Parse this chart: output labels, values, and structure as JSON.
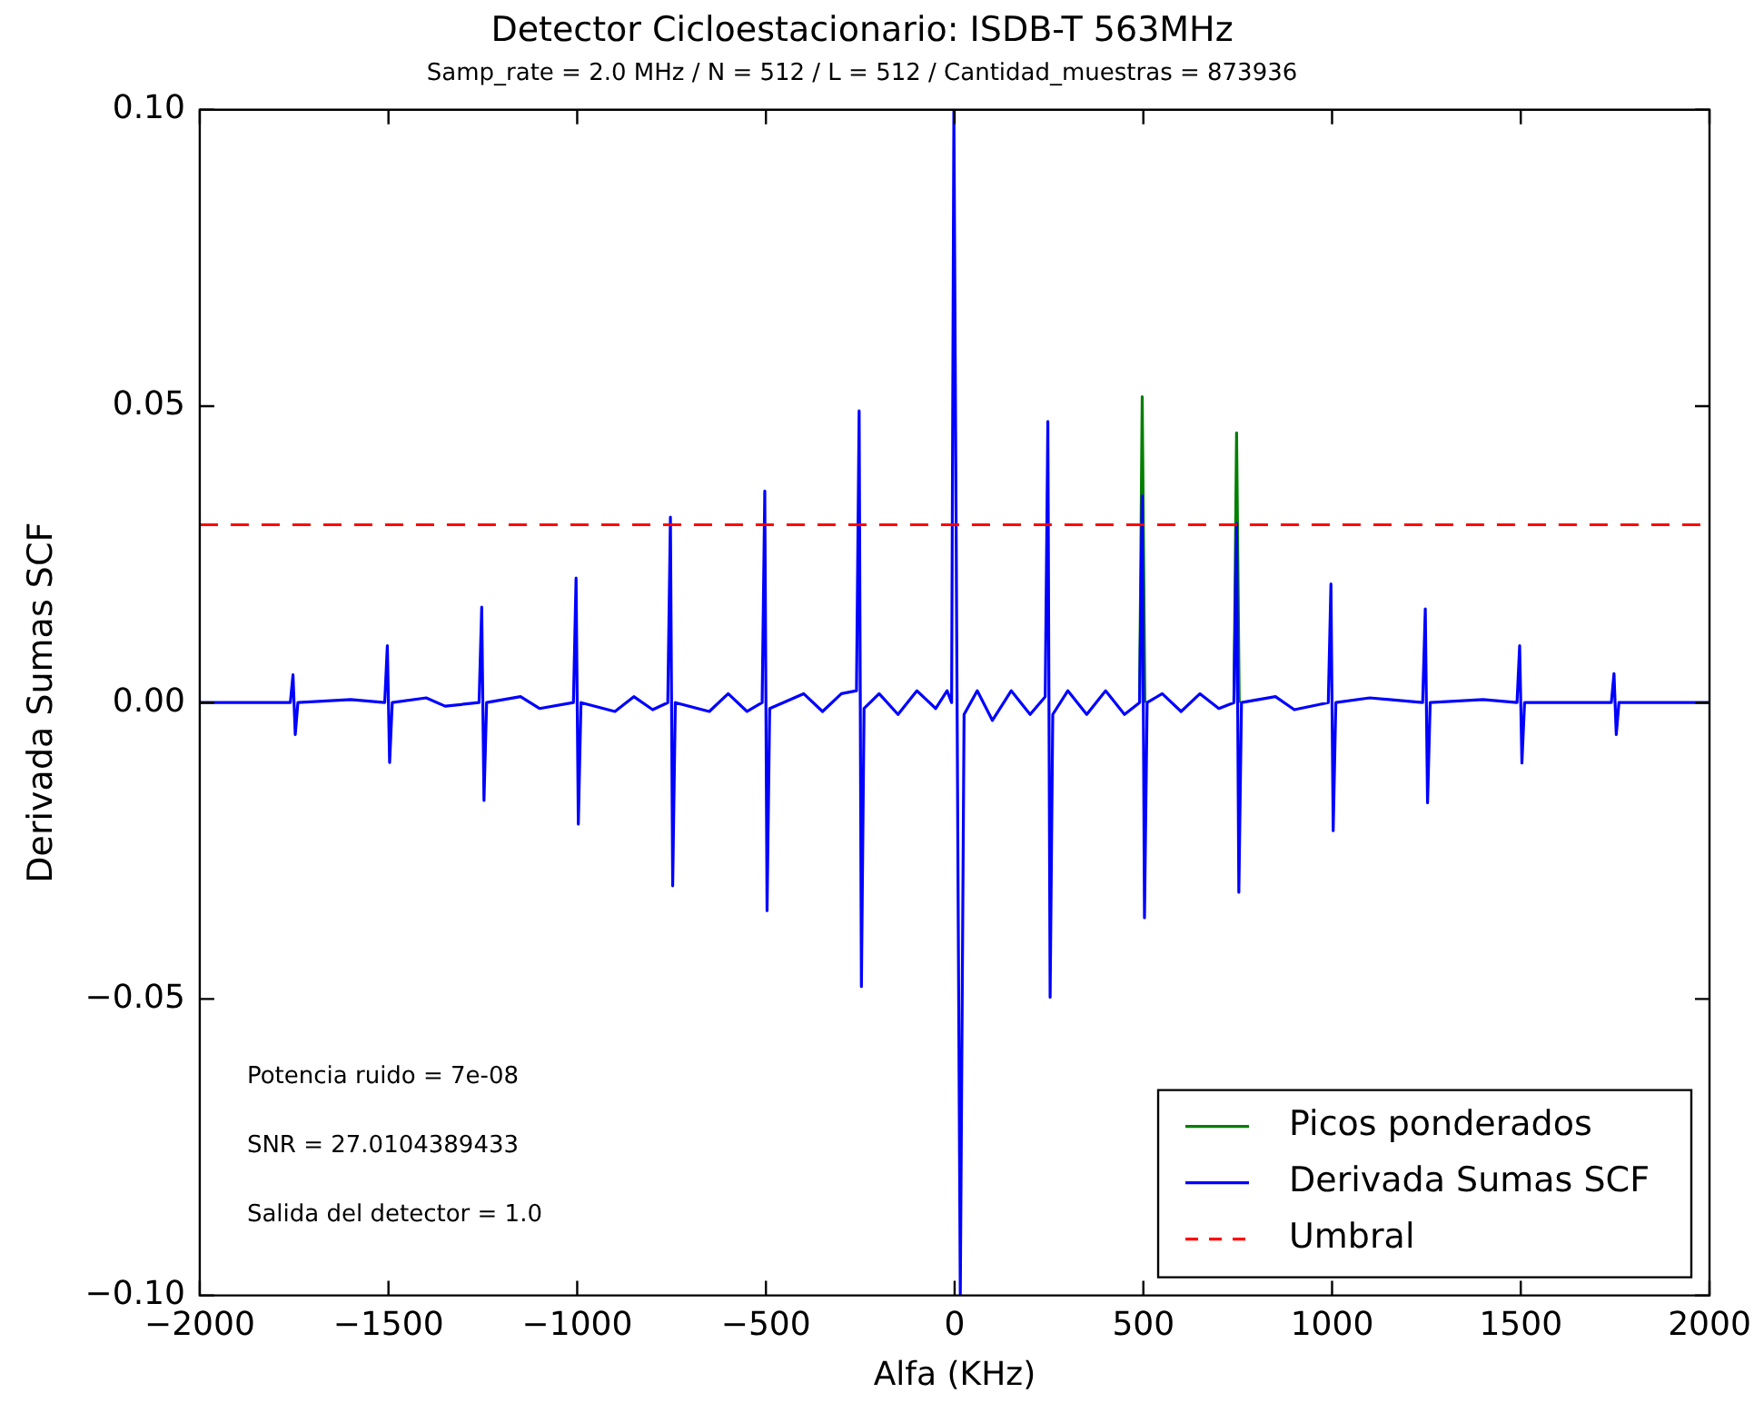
{
  "chart_data": {
    "type": "line",
    "title": "Detector Cicloestacionario: ISDB-T 563MHz",
    "subtitle": "Samp_rate = 2.0 MHz / N = 512 / L = 512 / Cantidad_muestras = 873936",
    "xlabel": "Alfa (KHz)",
    "ylabel": "Derivada Sumas SCF",
    "annotations": [
      "Potencia ruido = 7e-08",
      "SNR = 27.0104389433",
      "Salida del detector = 1.0"
    ],
    "xlim": [
      -2000,
      2000
    ],
    "xticks": [
      {
        "value": -2000,
        "label": "−2000"
      },
      {
        "value": -1500,
        "label": "−1500"
      },
      {
        "value": -1000,
        "label": "−1000"
      },
      {
        "value": -500,
        "label": "−500"
      },
      0,
      500,
      1000,
      1500,
      2000
    ],
    "ylim": [
      -0.1,
      0.1
    ],
    "yticks": [
      {
        "value": -0.1,
        "label": "−0.10"
      },
      {
        "value": -0.05,
        "label": "−0.05"
      },
      {
        "value": 0,
        "label": "0.00"
      },
      {
        "value": 0.05,
        "label": "0.05"
      },
      {
        "value": 0.1,
        "label": "0.10"
      }
    ],
    "grid": false,
    "legend": "bottom right",
    "marker": "none",
    "series": [
      {
        "name": "Picos ponderados",
        "color": "#008000",
        "line_style": "solid",
        "x": [
          490,
          497,
          504,
          620,
          740,
          747,
          754
        ],
        "values": [
          0,
          0.0516,
          0,
          null,
          0,
          0.0455,
          0
        ]
      },
      {
        "name": "Derivada Sumas SCF",
        "color": "#0000ff",
        "line_style": "solid",
        "x": [
          -2000,
          -1760,
          -1753,
          -1747,
          -1740,
          -1600,
          -1510,
          -1503,
          -1497,
          -1490,
          -1400,
          -1350,
          -1260,
          -1253,
          -1247,
          -1240,
          -1150,
          -1100,
          -1010,
          -1003,
          -997,
          -990,
          -900,
          -850,
          -800,
          -760,
          -753,
          -747,
          -740,
          -650,
          -600,
          -550,
          -510,
          -503,
          -497,
          -490,
          -400,
          -350,
          -300,
          -260,
          -253,
          -247,
          -240,
          -200,
          -150,
          -100,
          -50,
          -20,
          -8,
          -2,
          15,
          25,
          60,
          100,
          150,
          200,
          240,
          247,
          253,
          260,
          300,
          350,
          400,
          450,
          490,
          497,
          503,
          510,
          550,
          600,
          650,
          700,
          740,
          747,
          753,
          760,
          850,
          900,
          990,
          997,
          1003,
          1010,
          1100,
          1240,
          1247,
          1253,
          1260,
          1400,
          1490,
          1497,
          1503,
          1510,
          1740,
          1747,
          1753,
          1760,
          2000
        ],
        "values": [
          0,
          0,
          0.0047,
          -0.0054,
          0,
          0.0005,
          0,
          0.0096,
          -0.0101,
          0,
          0.0008,
          -0.0006,
          0,
          0.0161,
          -0.0165,
          0,
          0.001,
          -0.001,
          0,
          0.021,
          -0.0205,
          0,
          -0.0015,
          0.001,
          -0.0012,
          0,
          0.0313,
          -0.0309,
          0,
          -0.0015,
          0.0015,
          -0.0015,
          0,
          0.0357,
          -0.0351,
          -0.001,
          0.0015,
          -0.0015,
          0.0015,
          0.002,
          0.0492,
          -0.0479,
          -0.001,
          0.0015,
          -0.002,
          0.002,
          -0.001,
          0.002,
          0,
          0.1,
          -0.1,
          -0.002,
          0.002,
          -0.003,
          0.002,
          -0.002,
          0.001,
          0.0474,
          -0.0497,
          -0.002,
          0.002,
          -0.002,
          0.002,
          -0.002,
          0,
          0.0349,
          -0.0363,
          0,
          0.0015,
          -0.0015,
          0.0015,
          -0.001,
          0,
          0.0302,
          -0.032,
          0,
          0.001,
          -0.0012,
          0,
          0.02,
          -0.0216,
          0,
          0.0008,
          0,
          0.0158,
          -0.0169,
          0,
          0.0005,
          0,
          0.0096,
          -0.0102,
          0,
          0,
          0.0049,
          -0.0054,
          0,
          0
        ]
      },
      {
        "name": "Umbral",
        "color": "#ff0000",
        "line_style": "dashed",
        "x": [
          -2000,
          2000
        ],
        "values": [
          0.03,
          0.03
        ]
      }
    ]
  }
}
